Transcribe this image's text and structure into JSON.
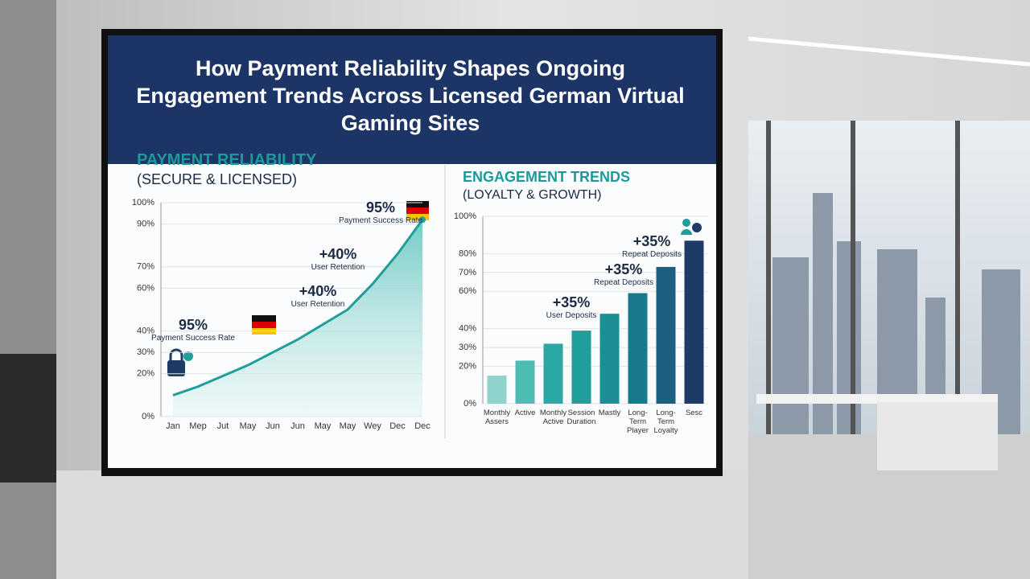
{
  "chart_data": [
    {
      "type": "area",
      "title": "How Payment Reliability Shapes Ongoing Engagement Trends Across Licensed German Virtual Gaming Sites",
      "subtitle": "PAYMENT RELIABILITY",
      "note": "(SECURE & LICENSED)",
      "categories": [
        "Jan",
        "Mep",
        "Jut",
        "May",
        "Jun",
        "Jun",
        "May",
        "May",
        "Wey",
        "Dec",
        "Dec"
      ],
      "values": [
        10,
        14,
        19,
        24,
        30,
        36,
        43,
        50,
        62,
        76,
        92
      ],
      "color": "#1f9e9a",
      "ylim": [
        0,
        100
      ],
      "yticks": [
        {
          "value": 0,
          "label": "0%"
        },
        {
          "value": 20,
          "label": "20%"
        },
        {
          "value": 30,
          "label": "30%"
        },
        {
          "value": 40,
          "label": "40%"
        },
        {
          "value": 60,
          "label": "60%"
        },
        {
          "value": 70,
          "label": "70%"
        },
        {
          "value": 90,
          "label": "90%"
        },
        {
          "value": 100,
          "label": "100%"
        }
      ],
      "grid": true,
      "annotations": [
        {
          "text": "95%",
          "subtext": "Payment Success Rate"
        },
        {
          "text": "+40%",
          "subtext": "User Retention"
        },
        {
          "text": "+40%",
          "subtext": "User Retention"
        },
        {
          "text": "95%",
          "subtext": "Payment Success Rate"
        }
      ]
    },
    {
      "type": "bar",
      "subtitle": "ENGAGEMENT TRENDS",
      "note": "(LOYALTY & GROWTH)",
      "categories": [
        "Monthly Assers",
        "Active",
        "Monthly Active",
        "Session Duration",
        "Mastly",
        "Long-Term Player",
        "Long-Term Loyalty",
        "Sesc"
      ],
      "values": [
        15,
        23,
        32,
        39,
        48,
        59,
        73,
        87
      ],
      "colors": [
        "#8fd3cc",
        "#4dbdb3",
        "#2aa8a4",
        "#1f9e9a",
        "#1a8f95",
        "#187a8a",
        "#1d5f7e",
        "#1d3b66"
      ],
      "ylim": [
        0,
        100
      ],
      "yticks": [
        {
          "value": 0,
          "label": "0%"
        },
        {
          "value": 20,
          "label": "20%"
        },
        {
          "value": 30,
          "label": "30%"
        },
        {
          "value": 40,
          "label": "40%"
        },
        {
          "value": 60,
          "label": "60%"
        },
        {
          "value": 70,
          "label": "70%"
        },
        {
          "value": 80,
          "label": "80%"
        },
        {
          "value": 100,
          "label": "100%"
        }
      ],
      "grid": true,
      "annotations": [
        {
          "text": "+35%",
          "subtext": "User Deposits"
        },
        {
          "text": "+35%",
          "subtext": "Repeat Deposits"
        },
        {
          "text": "+35%",
          "subtext": "Repeat Deposits"
        }
      ]
    }
  ]
}
